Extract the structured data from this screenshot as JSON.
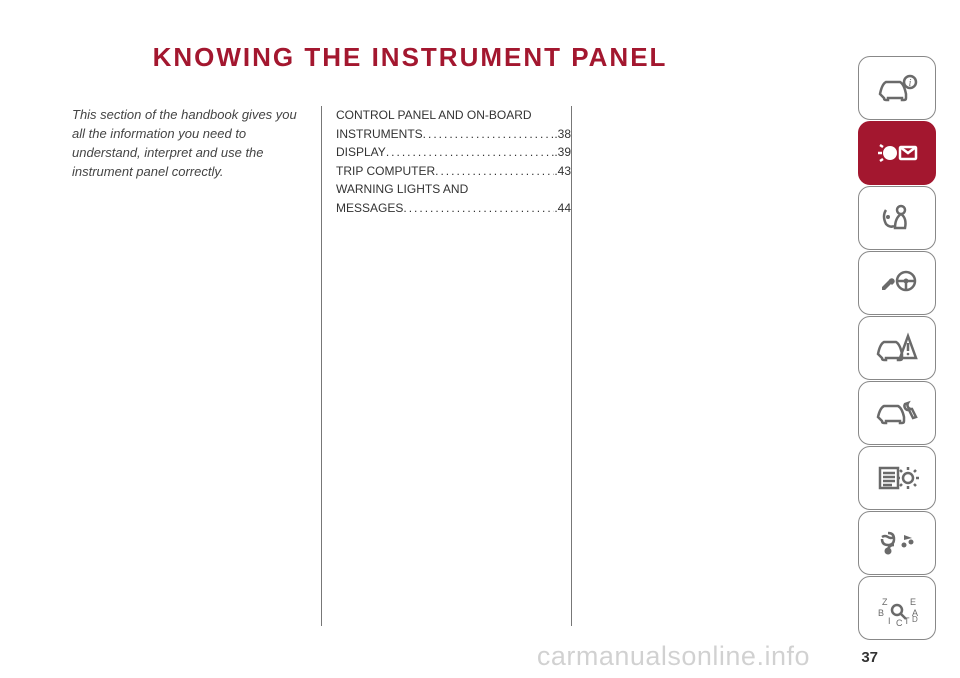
{
  "title": "KNOWING THE INSTRUMENT PANEL",
  "intro": "This section of the handbook gives you all the information you need to understand, interpret and use the instrument panel correctly.",
  "toc": [
    {
      "label_lines": [
        "CONTROL PANEL AND ON-BOARD",
        "INSTRUMENTS"
      ],
      "page": ".38"
    },
    {
      "label_lines": [
        "DISPLAY"
      ],
      "page": ".39"
    },
    {
      "label_lines": [
        "TRIP COMPUTER"
      ],
      "page": ".43"
    },
    {
      "label_lines": [
        "WARNING LIGHTS AND",
        "MESSAGES"
      ],
      "page": ".44"
    }
  ],
  "page_number": "37",
  "watermark": "carmanualsonline.info",
  "colors": {
    "accent": "#a3172f",
    "text": "#333333",
    "intro_text": "#444444",
    "tab_border": "#888888",
    "tab_icon": "#6a6a6a",
    "background": "#ffffff"
  },
  "tabs": [
    {
      "name": "knowing-your-car",
      "active": false
    },
    {
      "name": "knowing-instrument-panel",
      "active": true
    },
    {
      "name": "safety",
      "active": false
    },
    {
      "name": "starting-driving",
      "active": false
    },
    {
      "name": "emergency",
      "active": false
    },
    {
      "name": "servicing-maintenance",
      "active": false
    },
    {
      "name": "technical-spec",
      "active": false
    },
    {
      "name": "multimedia",
      "active": false
    },
    {
      "name": "index",
      "active": false
    }
  ]
}
